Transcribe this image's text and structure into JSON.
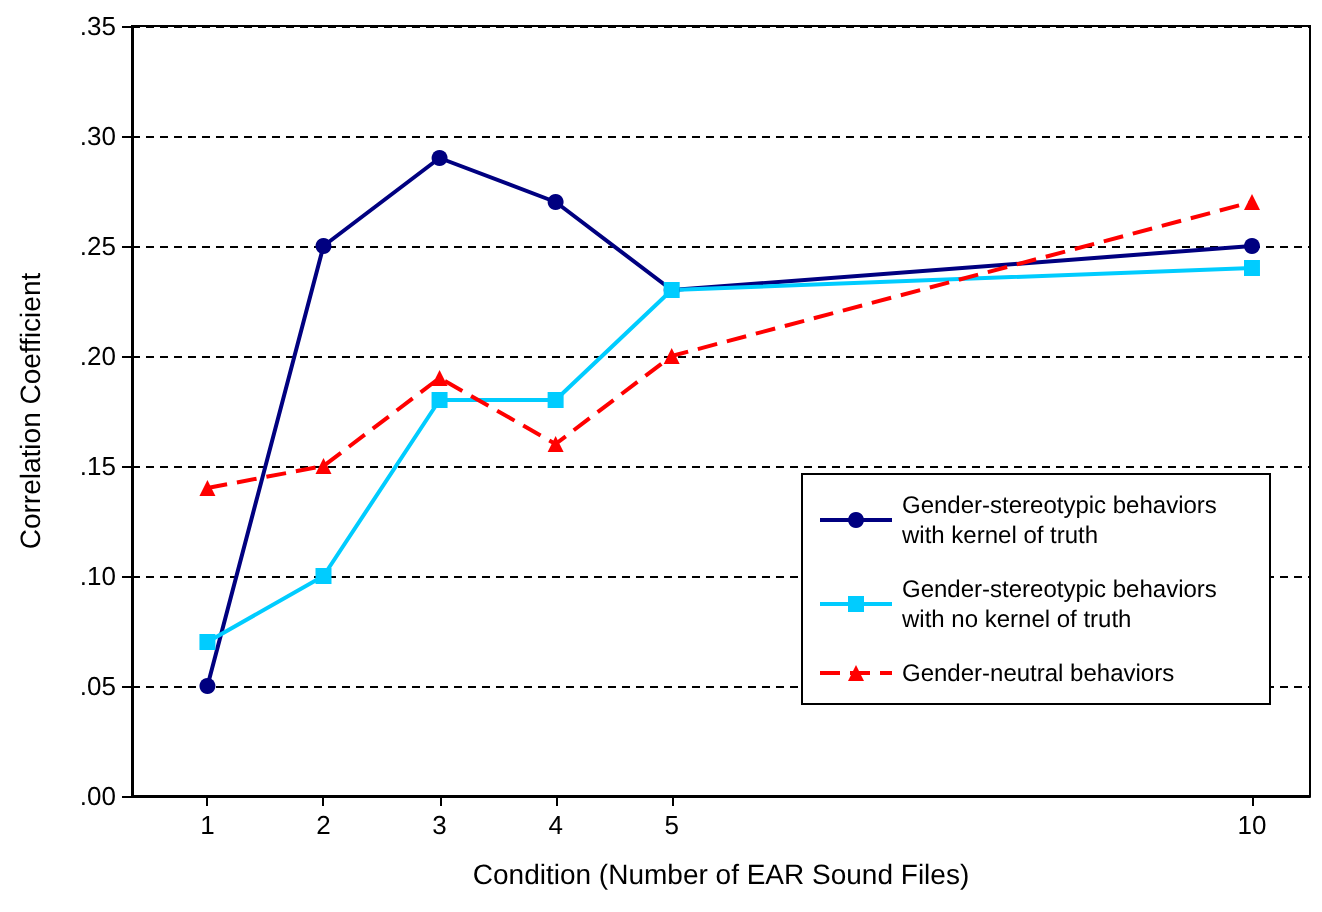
{
  "chart_data": {
    "type": "line",
    "xlabel": "Condition (Number of EAR Sound Files)",
    "ylabel": "Correlation Coefficient",
    "x": [
      1,
      2,
      3,
      4,
      5,
      10
    ],
    "series": [
      {
        "name": "Gender-stereotypic behaviors with kernel of truth",
        "color": "#000080",
        "marker": "circle",
        "line_style": "solid",
        "values": [
          0.05,
          0.25,
          0.29,
          0.27,
          0.23,
          0.25
        ]
      },
      {
        "name": "Gender-stereotypic behaviors with no kernel of truth",
        "color": "#00ccff",
        "marker": "square",
        "line_style": "solid",
        "values": [
          0.07,
          0.1,
          0.18,
          0.18,
          0.23,
          0.24
        ]
      },
      {
        "name": "Gender-neutral behaviors",
        "color": "#ff0000",
        "marker": "triangle",
        "line_style": "dashed",
        "values": [
          0.14,
          0.15,
          0.19,
          0.16,
          0.2,
          0.27
        ]
      }
    ],
    "xlim": [
      0.35,
      10.5
    ],
    "xticks": [
      1,
      2,
      3,
      4,
      5,
      10
    ],
    "ylim": [
      0,
      0.35
    ],
    "yticks": [
      {
        "value": 0,
        "label": ".00"
      },
      {
        "value": 0.05,
        "label": ".05"
      },
      {
        "value": 0.1,
        "label": ".10"
      },
      {
        "value": 0.15,
        "label": ".15"
      },
      {
        "value": 0.2,
        "label": ".20"
      },
      {
        "value": 0.25,
        "label": ".25"
      },
      {
        "value": 0.3,
        "label": ".30"
      },
      {
        "value": 0.35,
        "label": ".35"
      }
    ],
    "grid": "y",
    "legend": "right"
  }
}
